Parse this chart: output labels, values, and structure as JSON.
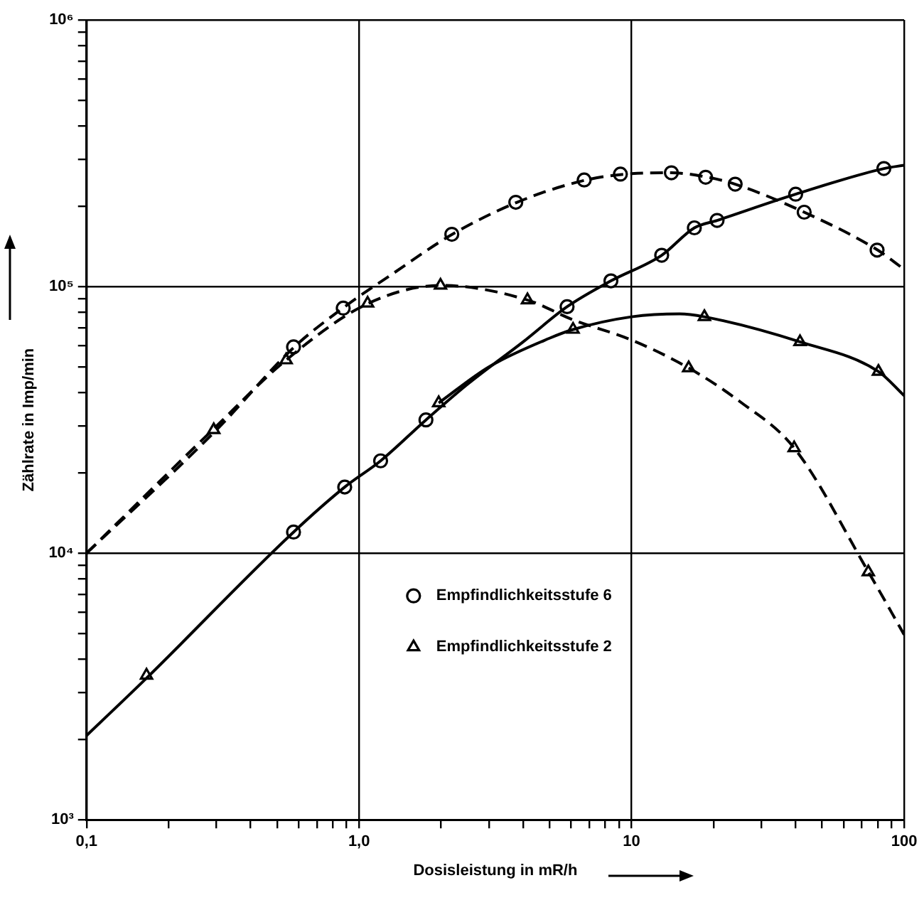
{
  "chart_data": {
    "type": "line",
    "xlabel": "Dosisleistung in mR/h",
    "ylabel": "Zählrate in Imp/min",
    "log": "xy",
    "grid": true,
    "legend": "center",
    "xlim": [
      0.1,
      100
    ],
    "ylim": [
      1000,
      1000000
    ],
    "xticks": [
      {
        "value": 0.1,
        "label": "0,1"
      },
      {
        "value": 0.2,
        "label": null
      },
      {
        "value": 0.3,
        "label": null
      },
      {
        "value": 0.4,
        "label": null
      },
      {
        "value": 0.5,
        "label": null
      },
      {
        "value": 0.6,
        "label": null
      },
      {
        "value": 0.7,
        "label": null
      },
      {
        "value": 0.8,
        "label": null
      },
      {
        "value": 0.9,
        "label": null
      },
      {
        "value": 1,
        "label": "1,0"
      },
      {
        "value": 2,
        "label": null
      },
      {
        "value": 3,
        "label": null
      },
      {
        "value": 4,
        "label": null
      },
      {
        "value": 5,
        "label": null
      },
      {
        "value": 6,
        "label": null
      },
      {
        "value": 7,
        "label": null
      },
      {
        "value": 8,
        "label": null
      },
      {
        "value": 9,
        "label": null
      },
      10,
      {
        "value": 20,
        "label": null
      },
      {
        "value": 30,
        "label": null
      },
      {
        "value": 40,
        "label": null
      },
      {
        "value": 50,
        "label": null
      },
      {
        "value": 60,
        "label": null
      },
      {
        "value": 70,
        "label": null
      },
      {
        "value": 80,
        "label": null
      },
      {
        "value": 90,
        "label": null
      },
      100
    ],
    "yticks": [
      {
        "value": 1000,
        "label": "10³"
      },
      {
        "value": 2000,
        "label": null
      },
      {
        "value": 3000,
        "label": null
      },
      {
        "value": 4000,
        "label": null
      },
      {
        "value": 5000,
        "label": null
      },
      {
        "value": 6000,
        "label": null
      },
      {
        "value": 7000,
        "label": null
      },
      {
        "value": 8000,
        "label": null
      },
      {
        "value": 9000,
        "label": null
      },
      {
        "value": 10000,
        "label": "10⁴"
      },
      {
        "value": 20000,
        "label": null
      },
      {
        "value": 30000,
        "label": null
      },
      {
        "value": 40000,
        "label": null
      },
      {
        "value": 50000,
        "label": null
      },
      {
        "value": 60000,
        "label": null
      },
      {
        "value": 70000,
        "label": null
      },
      {
        "value": 80000,
        "label": null
      },
      {
        "value": 90000,
        "label": null
      },
      {
        "value": 100000,
        "label": "10⁵"
      },
      {
        "value": 200000,
        "label": null
      },
      {
        "value": 300000,
        "label": null
      },
      {
        "value": 400000,
        "label": null
      },
      {
        "value": 500000,
        "label": null
      },
      {
        "value": 600000,
        "label": null
      },
      {
        "value": 700000,
        "label": null
      },
      {
        "value": 800000,
        "label": null
      },
      {
        "value": 900000,
        "label": null
      },
      {
        "value": 1000000,
        "label": "10⁶"
      }
    ],
    "series": [
      {
        "type": "line",
        "color": "#000000",
        "line_style": "dashed",
        "marker": "none",
        "x": [
          0.1,
          0.3,
          0.575,
          0.9,
          1.3,
          2.2,
          3.8,
          6.7,
          10,
          14,
          19,
          24,
          43,
          80,
          100
        ],
        "values": [
          10000,
          29000,
          59000,
          85000,
          110000,
          157000,
          207000,
          250000,
          265000,
          267000,
          257000,
          242000,
          190000,
          137000,
          116000
        ]
      },
      {
        "type": "line",
        "color": "#000000",
        "line_style": "dashed",
        "marker": "none",
        "x": [
          0.1,
          0.29,
          0.54,
          1.07,
          2,
          4.15,
          6.1,
          10,
          16.2,
          25,
          39.5,
          74,
          100
        ],
        "values": [
          10000,
          29000,
          53000,
          86000,
          101000,
          89000,
          75000,
          63000,
          49500,
          37000,
          24800,
          8500,
          4950
        ]
      },
      {
        "type": "line",
        "color": "#000000",
        "line_style": "solid",
        "marker": "none",
        "x": [
          0.1,
          0.166,
          0.575,
          0.886,
          1.2,
          1.76,
          2.5,
          4,
          5.8,
          8.4,
          12.9,
          17,
          20.6,
          40,
          84.3,
          100
        ],
        "values": [
          2070,
          3400,
          12000,
          17700,
          22200,
          31600,
          43000,
          62000,
          84000,
          105000,
          131000,
          166000,
          177000,
          222000,
          277000,
          285000
        ]
      },
      {
        "type": "line",
        "color": "#000000",
        "line_style": "solid",
        "marker": "none",
        "x": [
          1.96,
          3,
          5,
          6.1,
          10,
          15,
          18.5,
          41.5,
          80.5,
          100
        ],
        "values": [
          36600,
          50000,
          64000,
          69000,
          77000,
          79000,
          77000,
          62000,
          48000,
          39000
        ]
      },
      {
        "type": "scatter",
        "name": "Empfindlichkeitsstufe 6",
        "color": "#000000",
        "marker": "circle",
        "x": [
          0.575,
          0.875,
          2.19,
          3.76,
          6.7,
          9.1,
          14,
          18.7,
          24,
          43,
          79.6,
          0.575,
          0.886,
          1.2,
          1.76,
          5.8,
          8.4,
          12.9,
          17,
          20.6,
          40,
          84.3
        ],
        "values": [
          59400,
          83000,
          157000,
          207000,
          251000,
          264000,
          267000,
          257000,
          242000,
          190000,
          137000,
          12000,
          17700,
          22200,
          31600,
          84000,
          105000,
          131000,
          166000,
          177000,
          222000,
          277000
        ]
      },
      {
        "type": "scatter",
        "name": "Empfindlichkeitsstufe 2",
        "color": "#000000",
        "marker": "triangle",
        "x": [
          0.293,
          0.54,
          1.075,
          1.99,
          4.15,
          16.2,
          39.5,
          73.9,
          0.166,
          1.96,
          6.1,
          18.5,
          41.5,
          80.5
        ],
        "values": [
          29000,
          53000,
          86500,
          101000,
          89000,
          49500,
          24800,
          8500,
          3480,
          36600,
          69000,
          77000,
          62000,
          48000
        ]
      }
    ]
  }
}
